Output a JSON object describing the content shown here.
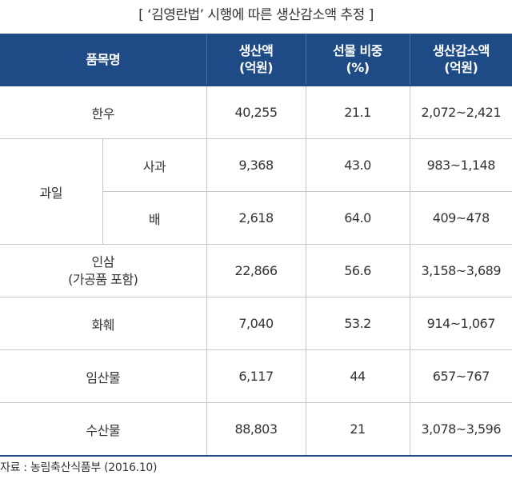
{
  "title": "[ ‘김영란법’ 시행에 따른 생산감소액 추정 ]",
  "headers": {
    "item": "품목명",
    "production": [
      "생산액",
      "(억원)"
    ],
    "gift_ratio": [
      "선물 비중",
      "(%)"
    ],
    "decrease": [
      "생산감소액",
      "(억원)"
    ]
  },
  "rows": {
    "hanwoo": {
      "name": "한우",
      "production": "40,255",
      "ratio": "21.1",
      "decrease": "2,072~2,421"
    },
    "fruit": {
      "group": "과일",
      "apple": {
        "name": "사과",
        "production": "9,368",
        "ratio": "43.0",
        "decrease": "983~1,148"
      },
      "pear": {
        "name": "배",
        "production": "2,618",
        "ratio": "64.0",
        "decrease": "409~478"
      }
    },
    "ginseng": {
      "name": [
        "인삼",
        "(가공품 포함)"
      ],
      "production": "22,866",
      "ratio": "56.6",
      "decrease": "3,158~3,689"
    },
    "flowers": {
      "name": "화훼",
      "production": "7,040",
      "ratio": "53.2",
      "decrease": "914~1,067"
    },
    "forest": {
      "name": "임산물",
      "production": "6,117",
      "ratio": "44",
      "decrease": "657~767"
    },
    "marine": {
      "name": "수산물",
      "production": "88,803",
      "ratio": "21",
      "decrease": "3,078~3,596"
    }
  },
  "source": "자료 : 농림축산식품부 (2016.10)",
  "colors": {
    "header_bg": "#1e4b86",
    "header_text": "#ffffff",
    "grid_line": "#c7c7c7"
  }
}
